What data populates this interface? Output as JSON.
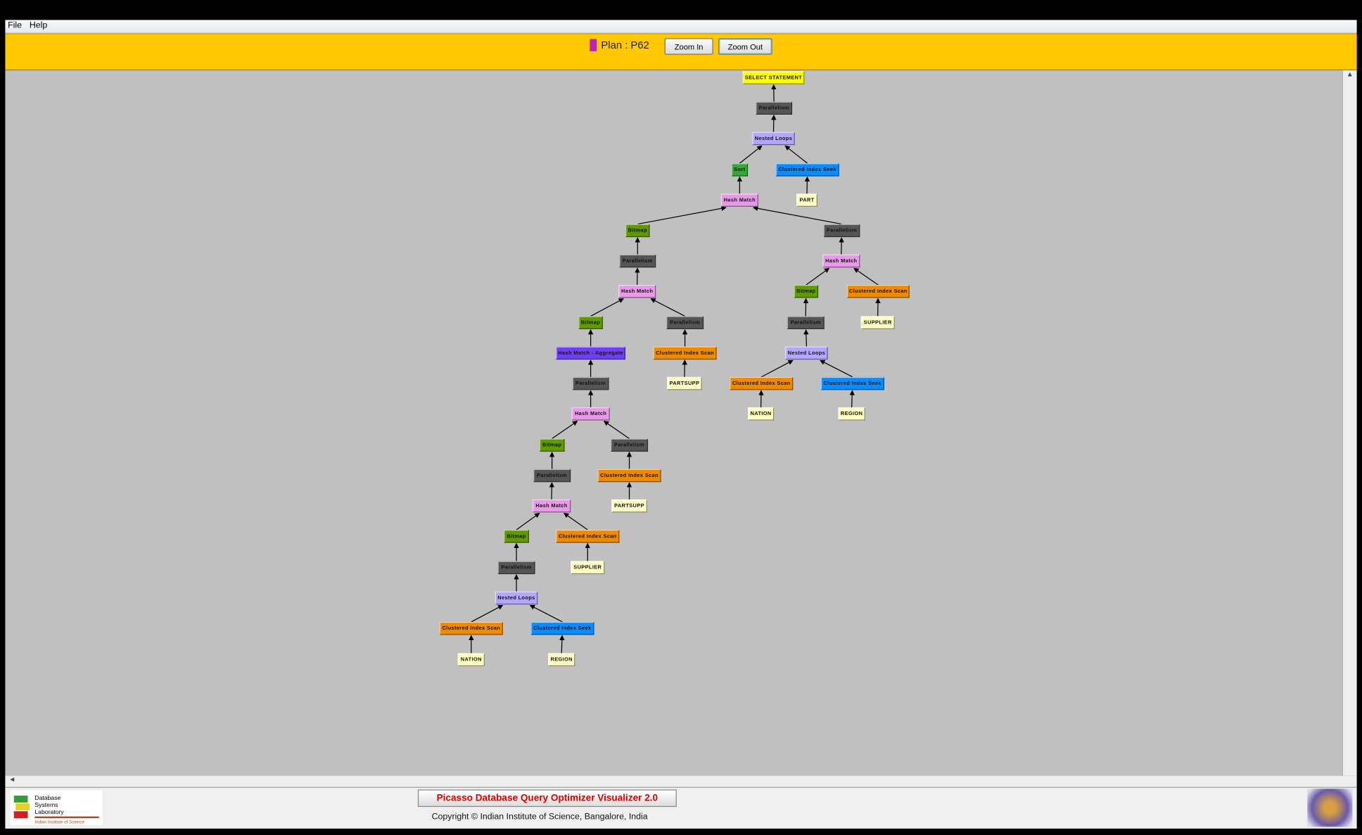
{
  "menu": {
    "file": "File",
    "help": "Help"
  },
  "toolbar": {
    "plan_label": "Plan : P62",
    "plan_color": "#c020c0",
    "zoom_in": "Zoom In",
    "zoom_out": "Zoom Out"
  },
  "footer": {
    "title": "Picasso Database Query Optimizer Visualizer 2.0",
    "copyright": "Copyright © Indian Institute of Science, Bangalore, India",
    "logo_text": "Database Systems Laboratory – Indian Institute of Science"
  },
  "scroll": {
    "up": "▲",
    "down": "▼",
    "left": "◄",
    "right": "►"
  },
  "colors": {
    "SELECT STATEMENT": "#ffff00",
    "Parallelism": "#555555",
    "Nested Loops": "#b3a6ff",
    "Sort": "#33a833",
    "Clustered Index Seek": "#0a8cff",
    "Clustered Index Scan": "#ee8a00",
    "Hash Match": "#e89ae8",
    "Bitmap": "#5f9a00",
    "Hash Match - Aggregate": "#7040f0",
    "table": "#ffffc4"
  },
  "plan_tree": [
    {
      "label": "SELECT STATEMENT",
      "parent": null
    },
    {
      "label": "Parallelism",
      "parent": 0
    },
    {
      "label": "Nested Loops",
      "parent": 1
    },
    {
      "label": "Sort",
      "parent": 2
    },
    {
      "label": "Clustered Index Seek",
      "parent": 2
    },
    {
      "label": "PART",
      "parent": 4,
      "table": true
    },
    {
      "label": "Hash Match",
      "parent": 3
    },
    {
      "label": "Bitmap",
      "parent": 6
    },
    {
      "label": "Parallelism",
      "parent": 6
    },
    {
      "label": "Parallelism",
      "parent": 7
    },
    {
      "label": "Hash Match",
      "parent": 8
    },
    {
      "label": "Hash Match",
      "parent": 9
    },
    {
      "label": "Bitmap",
      "parent": 10
    },
    {
      "label": "Clustered Index Scan",
      "parent": 10
    },
    {
      "label": "Bitmap",
      "parent": 11
    },
    {
      "label": "Parallelism",
      "parent": 11
    },
    {
      "label": "Parallelism",
      "parent": 12
    },
    {
      "label": "SUPPLIER",
      "parent": 13,
      "table": true
    },
    {
      "label": "Hash Match - Aggregate",
      "parent": 14
    },
    {
      "label": "Clustered Index Scan",
      "parent": 15
    },
    {
      "label": "Nested Loops",
      "parent": 16
    },
    {
      "label": "Parallelism",
      "parent": 18
    },
    {
      "label": "PARTSUPP",
      "parent": 19,
      "table": true
    },
    {
      "label": "Clustered Index Scan",
      "parent": 20
    },
    {
      "label": "Clustered Index Seek",
      "parent": 20
    },
    {
      "label": "Hash Match",
      "parent": 21
    },
    {
      "label": "NATION",
      "parent": 23,
      "table": true
    },
    {
      "label": "REGION",
      "parent": 24,
      "table": true
    },
    {
      "label": "Bitmap",
      "parent": 25
    },
    {
      "label": "Parallelism",
      "parent": 25
    },
    {
      "label": "Parallelism",
      "parent": 28
    },
    {
      "label": "Clustered Index Scan",
      "parent": 29
    },
    {
      "label": "Hash Match",
      "parent": 30
    },
    {
      "label": "PARTSUPP",
      "parent": 31,
      "table": true
    },
    {
      "label": "Bitmap",
      "parent": 32
    },
    {
      "label": "Clustered Index Scan",
      "parent": 32
    },
    {
      "label": "Parallelism",
      "parent": 34
    },
    {
      "label": "SUPPLIER",
      "parent": 35,
      "table": true
    },
    {
      "label": "Nested Loops",
      "parent": 36
    },
    {
      "label": "Clustered Index Scan",
      "parent": 38
    },
    {
      "label": "Clustered Index Seek",
      "parent": 38
    },
    {
      "label": "NATION",
      "parent": 39,
      "table": true
    },
    {
      "label": "REGION",
      "parent": 40,
      "table": true
    }
  ]
}
